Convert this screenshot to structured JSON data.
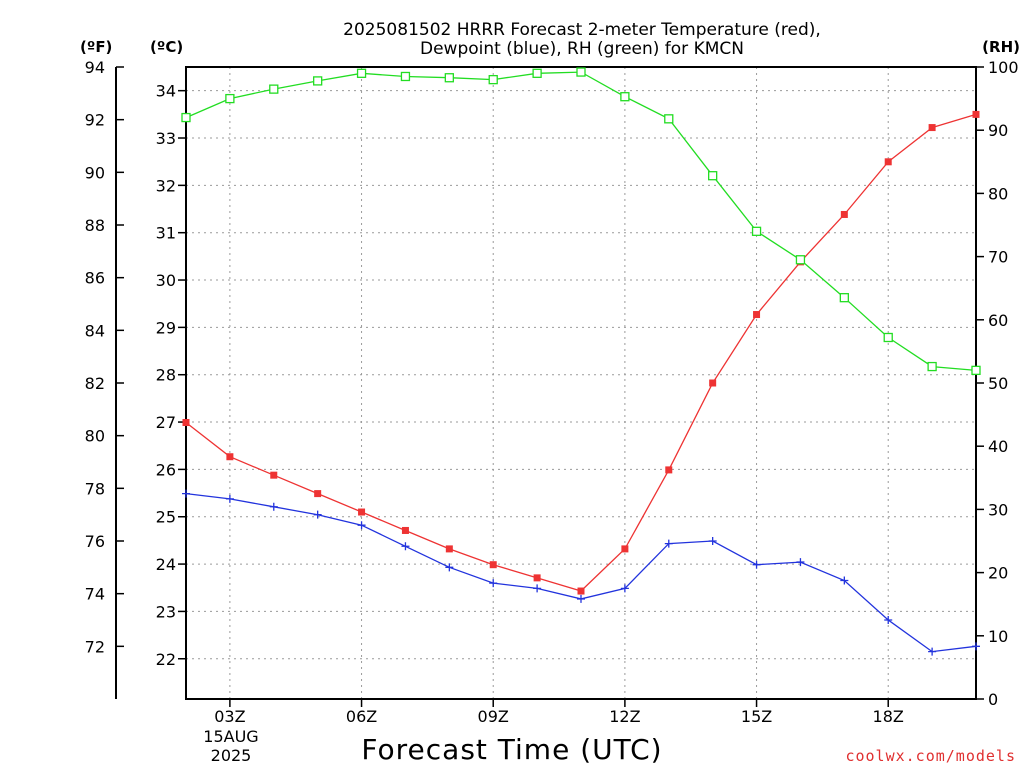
{
  "chart_data": {
    "type": "line",
    "title_line1": "2025081502 HRRR Forecast 2-meter Temperature (red),",
    "title_line2": "Dewpoint (blue), RH (green) for KMCN",
    "xlabel": "Forecast Time (UTC)",
    "x_date_line1": "15AUG",
    "x_date_line2": "2025",
    "units": {
      "fahrenheit": "(ºF)",
      "celsius": "(ºC)",
      "rh": "(RH)"
    },
    "credit": "coolwx.com/models",
    "x_hours": [
      2,
      3,
      4,
      5,
      6,
      7,
      8,
      9,
      10,
      11,
      12,
      13,
      14,
      15,
      16,
      17,
      18,
      19,
      20
    ],
    "x_ticks": [
      {
        "hour": 3,
        "label": "03Z"
      },
      {
        "hour": 6,
        "label": "06Z"
      },
      {
        "hour": 9,
        "label": "09Z"
      },
      {
        "hour": 12,
        "label": "12Z"
      },
      {
        "hour": 15,
        "label": "15Z"
      },
      {
        "hour": 18,
        "label": "18Z"
      }
    ],
    "xlim": [
      2,
      20
    ],
    "f_ticks": [
      {
        "value": 72,
        "label": "72"
      },
      {
        "value": 74,
        "label": "74"
      },
      {
        "value": 76,
        "label": "76"
      },
      {
        "value": 78,
        "label": "78"
      },
      {
        "value": 80,
        "label": "80"
      },
      {
        "value": 82,
        "label": "82"
      },
      {
        "value": 84,
        "label": "84"
      },
      {
        "value": 86,
        "label": "86"
      },
      {
        "value": 88,
        "label": "88"
      },
      {
        "value": 90,
        "label": "90"
      },
      {
        "value": 92,
        "label": "92"
      },
      {
        "value": 94,
        "label": "94"
      }
    ],
    "flim": [
      70.0,
      94.0
    ],
    "c_ticks": [
      {
        "value": 22,
        "label": "22"
      },
      {
        "value": 23,
        "label": "23"
      },
      {
        "value": 24,
        "label": "24"
      },
      {
        "value": 25,
        "label": "25"
      },
      {
        "value": 26,
        "label": "26"
      },
      {
        "value": 27,
        "label": "27"
      },
      {
        "value": 28,
        "label": "28"
      },
      {
        "value": 29,
        "label": "29"
      },
      {
        "value": 30,
        "label": "30"
      },
      {
        "value": 31,
        "label": "31"
      },
      {
        "value": 32,
        "label": "32"
      },
      {
        "value": 33,
        "label": "33"
      },
      {
        "value": 34,
        "label": "34"
      }
    ],
    "clim": [
      21.15,
      34.5
    ],
    "rh_ticks": [
      {
        "value": 0,
        "label": "0"
      },
      {
        "value": 10,
        "label": "10"
      },
      {
        "value": 20,
        "label": "20"
      },
      {
        "value": 30,
        "label": "30"
      },
      {
        "value": 40,
        "label": "40"
      },
      {
        "value": 50,
        "label": "50"
      },
      {
        "value": 60,
        "label": "60"
      },
      {
        "value": 70,
        "label": "70"
      },
      {
        "value": 80,
        "label": "80"
      },
      {
        "value": 90,
        "label": "90"
      },
      {
        "value": 100,
        "label": "100"
      }
    ],
    "rhlim": [
      0,
      100
    ],
    "grid": true,
    "series": [
      {
        "axis": "fahrenheit",
        "color": "#ee3333",
        "marker": "filled-square",
        "values": [
          80.5,
          79.2,
          78.5,
          77.8,
          77.1,
          76.4,
          75.7,
          75.1,
          74.6,
          74.1,
          75.7,
          78.7,
          82.0,
          84.6,
          86.6,
          88.4,
          90.4,
          91.7,
          92.2
        ]
      },
      {
        "axis": "fahrenheit",
        "color": "#2233dd",
        "marker": "plus",
        "values": [
          77.8,
          77.6,
          77.3,
          77.0,
          76.6,
          75.8,
          75.0,
          74.4,
          74.2,
          73.8,
          74.2,
          75.9,
          76.0,
          75.1,
          75.2,
          74.5,
          73.0,
          71.8,
          72.0
        ]
      },
      {
        "axis": "rh",
        "color": "#22dd22",
        "marker": "open-square",
        "values": [
          92.0,
          95.0,
          96.5,
          97.8,
          99.0,
          98.5,
          98.3,
          98.0,
          99.0,
          99.2,
          95.3,
          91.8,
          82.8,
          74.0,
          69.5,
          63.5,
          57.2,
          52.6,
          52.0
        ]
      }
    ]
  }
}
